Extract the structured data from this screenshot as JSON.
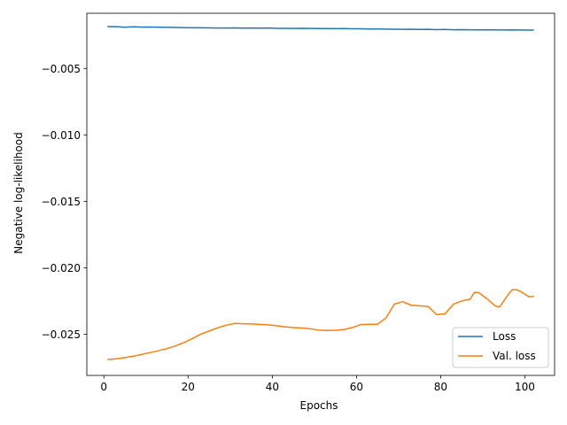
{
  "chart_data": {
    "type": "line",
    "xlabel": "Epochs",
    "ylabel": "Negative log-likelihood",
    "xlim": [
      -4.05,
      107.05
    ],
    "ylim": [
      -0.0281,
      -0.00085
    ],
    "xticks": [
      0,
      20,
      40,
      60,
      80,
      100
    ],
    "xtick_labels": [
      "0",
      "20",
      "40",
      "60",
      "80",
      "100"
    ],
    "yticks": [
      -0.005,
      -0.01,
      -0.015,
      -0.02,
      -0.025
    ],
    "ytick_labels": [
      "−0.005",
      "−0.010",
      "−0.015",
      "−0.020",
      "−0.025"
    ],
    "grid": false,
    "legend_position": "lower-right",
    "series": [
      {
        "name": "Loss",
        "color": "#1f77b4",
        "x": [
          1,
          3,
          5,
          7,
          9,
          11,
          13,
          15,
          17,
          19,
          21,
          23,
          25,
          27,
          29,
          31,
          33,
          35,
          37,
          39,
          41,
          43,
          45,
          47,
          49,
          51,
          53,
          55,
          57,
          59,
          61,
          63,
          65,
          67,
          69,
          71,
          73,
          75,
          77,
          79,
          81,
          83,
          85,
          87,
          89,
          91,
          93,
          95,
          97,
          99,
          101,
          102
        ],
        "y": [
          -0.00185,
          -0.00186,
          -0.0019,
          -0.00187,
          -0.00189,
          -0.00188,
          -0.0019,
          -0.00191,
          -0.00192,
          -0.00193,
          -0.00194,
          -0.00194,
          -0.00195,
          -0.00196,
          -0.00196,
          -0.00195,
          -0.00197,
          -0.00196,
          -0.00197,
          -0.00196,
          -0.00198,
          -0.00198,
          -0.00199,
          -0.00198,
          -0.00199,
          -0.002,
          -0.002,
          -0.00201,
          -0.002,
          -0.00202,
          -0.00202,
          -0.00203,
          -0.00203,
          -0.00204,
          -0.00205,
          -0.00206,
          -0.00205,
          -0.00207,
          -0.00206,
          -0.00208,
          -0.00207,
          -0.00209,
          -0.00208,
          -0.00209,
          -0.0021,
          -0.00209,
          -0.0021,
          -0.00211,
          -0.0021,
          -0.00211,
          -0.00212,
          -0.00212
        ]
      },
      {
        "name": "Val. loss",
        "color": "#ff7f0e",
        "x": [
          1,
          3,
          5,
          7,
          9,
          11,
          13,
          15,
          17,
          19,
          21,
          23,
          25,
          27,
          29,
          31,
          33,
          35,
          37,
          39,
          41,
          43,
          45,
          47,
          49,
          51,
          53,
          55,
          57,
          59,
          61,
          63,
          65,
          67,
          69,
          71,
          73,
          75,
          77,
          79,
          81,
          83,
          85,
          87,
          88,
          89,
          91,
          93,
          94,
          96,
          97,
          98,
          99,
          101,
          102
        ],
        "y": [
          -0.0269,
          -0.02685,
          -0.02676,
          -0.02665,
          -0.02652,
          -0.02638,
          -0.02624,
          -0.02608,
          -0.02588,
          -0.02563,
          -0.02533,
          -0.025,
          -0.02476,
          -0.02452,
          -0.02433,
          -0.02419,
          -0.02421,
          -0.02423,
          -0.02426,
          -0.02429,
          -0.02436,
          -0.02444,
          -0.0245,
          -0.02453,
          -0.02459,
          -0.02469,
          -0.02472,
          -0.0247,
          -0.02465,
          -0.0245,
          -0.02428,
          -0.02425,
          -0.02425,
          -0.02378,
          -0.02273,
          -0.02255,
          -0.02282,
          -0.02286,
          -0.02291,
          -0.02352,
          -0.02348,
          -0.02275,
          -0.0225,
          -0.02236,
          -0.02185,
          -0.02186,
          -0.02233,
          -0.02288,
          -0.02295,
          -0.02203,
          -0.02165,
          -0.02165,
          -0.02179,
          -0.02219,
          -0.02215
        ]
      }
    ]
  }
}
